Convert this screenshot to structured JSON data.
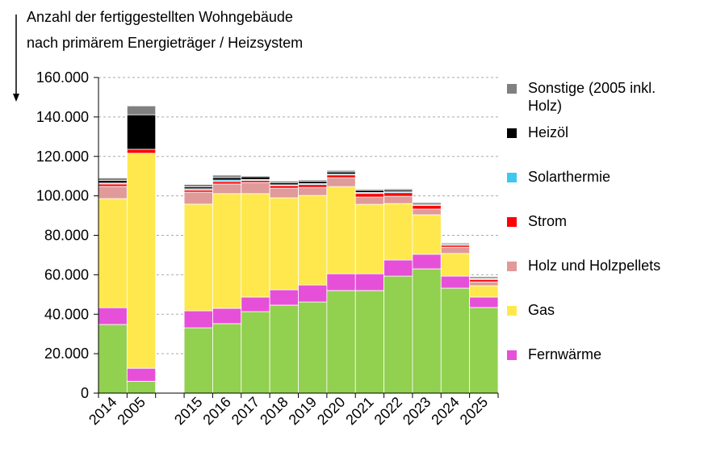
{
  "chart_data": {
    "type": "stacked_bar",
    "title": [
      "Anzahl der fertiggestellten  Wohngebäude",
      "nach primärem  Energieträger  / Heizsystem"
    ],
    "categories": [
      "2014",
      "2005",
      null,
      "2015",
      "2016",
      "2017",
      "2018",
      "2019",
      "2020",
      "2021",
      "2022",
      "2023",
      "2024",
      "2025"
    ],
    "series": [
      {
        "color": "#92d050",
        "values": [
          34800,
          6000,
          null,
          33100,
          35200,
          41300,
          44600,
          46200,
          52000,
          52000,
          59300,
          63000,
          53200,
          43400
        ]
      },
      {
        "name": "Fernwärme",
        "color": "#e650d8",
        "values": [
          8500,
          6600,
          null,
          8600,
          7800,
          7400,
          7800,
          8600,
          8500,
          8500,
          8200,
          7400,
          6100,
          5300
        ]
      },
      {
        "name": "Gas",
        "color": "#ffe84d",
        "values": [
          55300,
          109000,
          null,
          54100,
          58100,
          52400,
          46600,
          45400,
          44200,
          35200,
          28600,
          20000,
          11500,
          5700
        ]
      },
      {
        "name": "Holz und Holzpellets",
        "color": "#e09a9a",
        "values": [
          6200,
          0,
          null,
          6100,
          4900,
          5700,
          4900,
          4100,
          4500,
          3700,
          3700,
          2900,
          3200,
          2000
        ]
      },
      {
        "name": "Strom",
        "color": "#ff0000",
        "values": [
          1200,
          2000,
          null,
          1000,
          1200,
          1000,
          1300,
          1400,
          1400,
          1800,
          1800,
          1800,
          1000,
          1200
        ]
      },
      {
        "name": "Solarthermie",
        "color": "#3cc8f0",
        "values": [
          500,
          0,
          null,
          700,
          800,
          500,
          400,
          500,
          400,
          500,
          500,
          400,
          300,
          300
        ]
      },
      {
        "name": "Heizöl",
        "color": "#000000",
        "values": [
          1300,
          17500,
          null,
          1000,
          1300,
          1400,
          1100,
          1200,
          1100,
          1100,
          900,
          600,
          500,
          500
        ]
      },
      {
        "name": "Sonstige (2005 inkl. Holz)",
        "color": "#808080",
        "values": [
          1300,
          4500,
          null,
          1200,
          1200,
          500,
          800,
          700,
          800,
          600,
          600,
          600,
          500,
          700
        ]
      }
    ],
    "ylim": [
      0,
      160000
    ],
    "yticks": [
      0,
      {
        "value": 20000,
        "label": "20.000"
      },
      {
        "value": 40000,
        "label": "40.000"
      },
      {
        "value": 60000,
        "label": "60.000"
      },
      {
        "value": 80000,
        "label": "80.000"
      },
      {
        "value": 100000,
        "label": "100.000"
      },
      {
        "value": 120000,
        "label": "120.000"
      },
      {
        "value": 140000,
        "label": "140.000"
      },
      {
        "value": 160000,
        "label": "160.000"
      }
    ],
    "grid": true
  }
}
